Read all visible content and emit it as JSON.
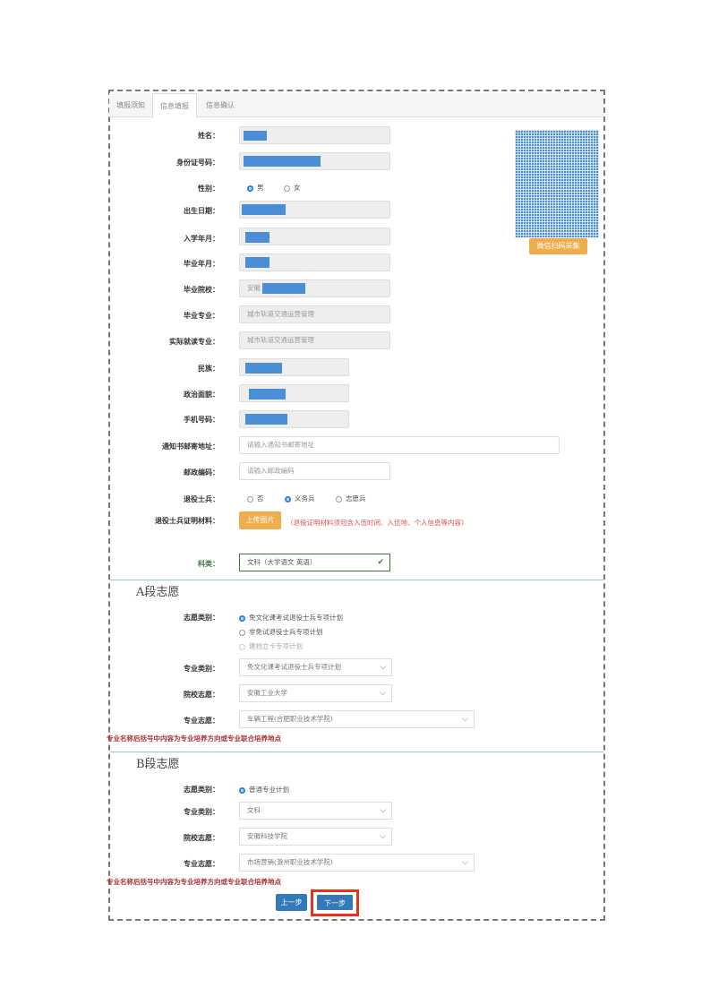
{
  "tabs": [
    "填报须知",
    "信息填报",
    "信息确认"
  ],
  "photo_button": "微信扫码采集",
  "fields": {
    "name": "姓名：",
    "id": "身份证号码：",
    "gender": "性别：",
    "gender_options": [
      "男",
      "女"
    ],
    "birth": "出生日期：",
    "enroll": "入学年月：",
    "graduate": "毕业年月：",
    "school": "毕业院校：",
    "school_prefix": "安徽",
    "major": "毕业专业：",
    "major_value": "城市轨道交通运营管理",
    "actual_major": "实际就读专业：",
    "actual_major_value": "城市轨道交通运营管理",
    "ethnic": "民族：",
    "political": "政治面貌：",
    "phone": "手机号码：",
    "address": "通知书邮寄地址：",
    "address_placeholder": "请输入通知书邮寄地址",
    "postcode": "邮政编码：",
    "postcode_placeholder": "请输入邮政编码",
    "veteran": "退役士兵：",
    "veteran_options": [
      "否",
      "义务兵",
      "志愿兵"
    ],
    "proof": "退役士兵证明材料：",
    "upload": "上传图片",
    "proof_hint": "（退役证明材料须包含入伍时间、入伍地、个人信息等内容）",
    "subject": "科类：",
    "subject_value": "文科（大学语文 英语）"
  },
  "section_a": {
    "title": "A段志愿",
    "type_label": "志愿类别：",
    "type_options": [
      "免文化课考试退役士兵专项计划",
      "非免试退役士兵专项计划",
      "建档立卡专项计划"
    ],
    "major_cat_label": "专业类别：",
    "major_cat": "免文化课考试退役士兵专项计划",
    "school_label": "院校志愿：",
    "school": "安徽工业大学",
    "major_label": "专业志愿：",
    "major": "车辆工程(合肥职业技术学院)"
  },
  "note": "专业名称后括号中内容为专业培养方向或专业联合培养地点",
  "section_b": {
    "title": "B段志愿",
    "type_label": "志愿类别：",
    "type_options": [
      "普通专业计划"
    ],
    "major_cat_label": "专业类别：",
    "major_cat": "文科",
    "school_label": "院校志愿：",
    "school": "安徽科技学院",
    "major_label": "专业志愿：",
    "major": "市场营销(滁州职业技术学院)"
  },
  "buttons": {
    "prev": "上一步",
    "next": "下一步"
  }
}
